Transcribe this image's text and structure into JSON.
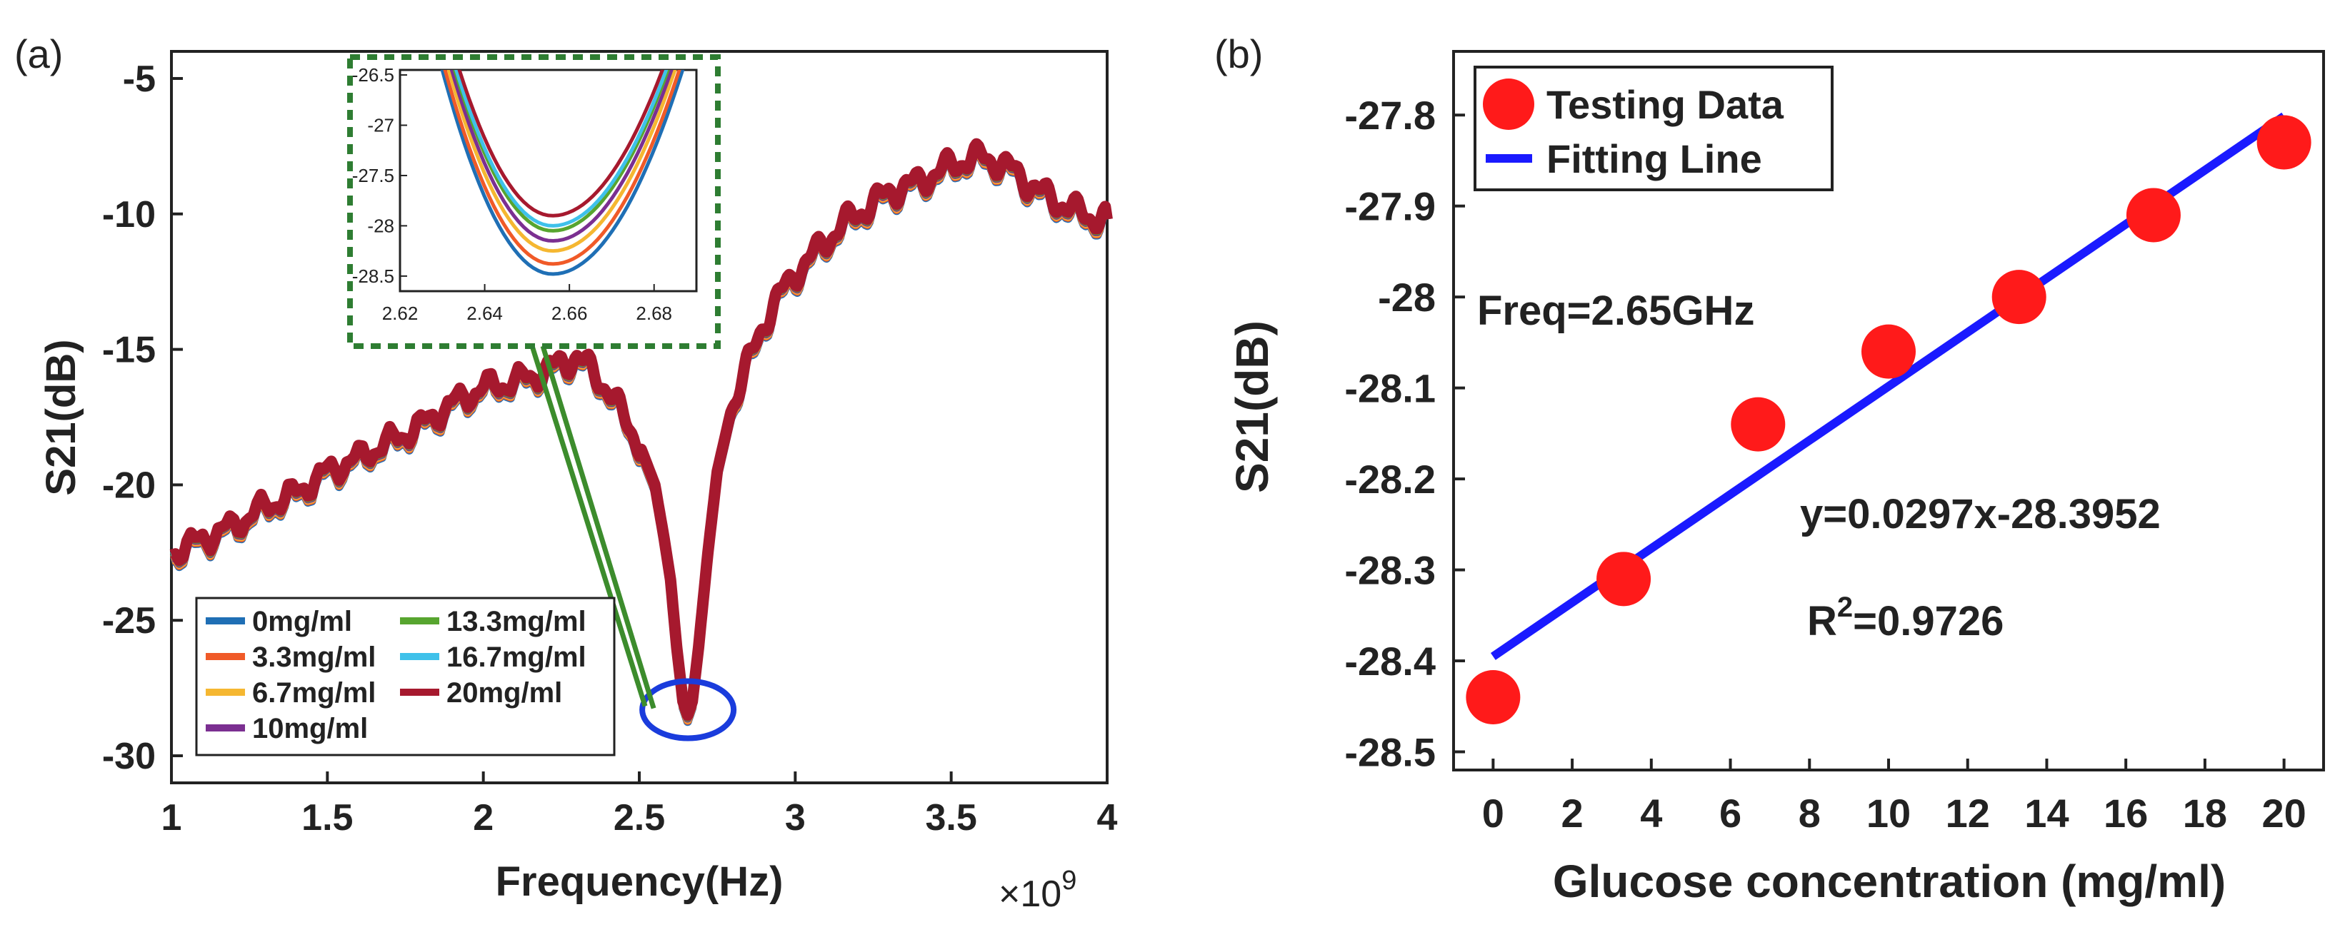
{
  "chart_data": [
    {
      "panel_label": "(a)",
      "type": "line",
      "title": "",
      "xlabel": "Frequency(Hz)",
      "ylabel": "S21(dB)",
      "x_multiplier_label": "×10",
      "x_multiplier_exp": "9",
      "xlim": [
        1,
        4
      ],
      "ylim": [
        -31,
        -4
      ],
      "xticks": [
        1,
        1.5,
        2,
        2.5,
        3,
        3.5,
        4
      ],
      "xtick_labels": [
        "1",
        "1.5",
        "2",
        "2.5",
        "3",
        "3.5",
        "4"
      ],
      "yticks": [
        -30,
        -25,
        -20,
        -15,
        -10,
        -5
      ],
      "ytick_labels": [
        "-30",
        "-25",
        "-20",
        "-15",
        "-10",
        "-5"
      ],
      "x": [
        1.0,
        1.1,
        1.2,
        1.3,
        1.4,
        1.5,
        1.6,
        1.7,
        1.8,
        1.9,
        2.0,
        2.1,
        2.2,
        2.25,
        2.3,
        2.35,
        2.4,
        2.45,
        2.5,
        2.55,
        2.58,
        2.6,
        2.62,
        2.64,
        2.655,
        2.67,
        2.69,
        2.72,
        2.75,
        2.8,
        2.85,
        2.9,
        2.95,
        3.0,
        3.05,
        3.1,
        3.15,
        3.2,
        3.25,
        3.3,
        3.35,
        3.4,
        3.45,
        3.5,
        3.55,
        3.6,
        3.65,
        3.7,
        3.75,
        3.8,
        3.85,
        3.9,
        3.95,
        4.0
      ],
      "y": [
        -22.5,
        -22.0,
        -21.5,
        -20.8,
        -20.3,
        -19.5,
        -19.0,
        -18.4,
        -17.8,
        -17.0,
        -16.4,
        -16.2,
        -15.8,
        -15.5,
        -15.3,
        -15.8,
        -16.5,
        -17.5,
        -18.5,
        -20.0,
        -22.0,
        -23.5,
        -26.0,
        -28.0,
        -28.5,
        -28.0,
        -26.0,
        -22.5,
        -19.5,
        -17.0,
        -15.5,
        -14.0,
        -13.0,
        -12.2,
        -11.6,
        -11.0,
        -10.4,
        -10.0,
        -9.6,
        -9.2,
        -9.0,
        -8.8,
        -8.5,
        -8.2,
        -8.0,
        -7.9,
        -8.1,
        -8.4,
        -8.9,
        -9.3,
        -9.6,
        -9.9,
        -10.1,
        -10.2
      ],
      "series": [
        {
          "name": "0mg/ml",
          "color": "#1f6fb5"
        },
        {
          "name": "3.3mg/ml",
          "color": "#f05a28"
        },
        {
          "name": "6.7mg/ml",
          "color": "#f5b731"
        },
        {
          "name": "10mg/ml",
          "color": "#7b2f91"
        },
        {
          "name": "13.3mg/ml",
          "color": "#57a52f"
        },
        {
          "name": "16.7mg/ml",
          "color": "#3fc1ea"
        },
        {
          "name": "20mg/ml",
          "color": "#a6192e"
        }
      ],
      "annotation": {
        "circle_color": "#1a3cdc",
        "zoom_box_color": "#2e7d32",
        "connector_color": "#3c8c2c"
      },
      "inset": {
        "xlim": [
          2.62,
          2.69
        ],
        "ylim": [
          -28.65,
          -26.45
        ],
        "xticks": [
          2.62,
          2.64,
          2.66,
          2.68
        ],
        "xtick_labels": [
          "2.62",
          "2.64",
          "2.66",
          "2.68"
        ],
        "yticks": [
          -28.5,
          -28,
          -27.5,
          -27,
          -26.5
        ],
        "ytick_labels": [
          "-28.5",
          "-28",
          "-27.5",
          "-27",
          "-26.5"
        ],
        "minima": [
          -28.48,
          -28.38,
          -28.25,
          -28.15,
          -28.05,
          -28.0,
          -27.9
        ],
        "min_x": 2.656
      }
    },
    {
      "panel_label": "(b)",
      "type": "scatter",
      "title": "",
      "xlabel": "Glucose concentration (mg/ml)",
      "ylabel": "S21(dB)",
      "xlim": [
        -1,
        21
      ],
      "ylim": [
        -28.52,
        -27.73
      ],
      "xticks": [
        0,
        2,
        4,
        6,
        8,
        10,
        12,
        14,
        16,
        18,
        20
      ],
      "xtick_labels": [
        "0",
        "2",
        "4",
        "6",
        "8",
        "10",
        "12",
        "14",
        "16",
        "18",
        "20"
      ],
      "yticks": [
        -28.5,
        -28.4,
        -28.3,
        -28.2,
        -28.1,
        -28.0,
        -27.9,
        -27.8
      ],
      "ytick_labels": [
        "-28.5",
        "-28.4",
        "-28.3",
        "-28.2",
        "-28.1",
        "-28",
        "-27.9",
        "-27.8"
      ],
      "x": [
        0,
        3.3,
        6.7,
        10,
        13.3,
        16.7,
        20
      ],
      "y": [
        -28.44,
        -28.31,
        -28.14,
        -28.06,
        -28.0,
        -27.91,
        -27.83
      ],
      "fit": {
        "slope": 0.0297,
        "intercept": -28.3952,
        "x_range": [
          0,
          20
        ]
      },
      "legend": [
        {
          "label": "Testing Data",
          "color": "#ff1a1a"
        },
        {
          "label": "Fitting Line",
          "color": "#1a1aff"
        }
      ],
      "annotations": {
        "freq": "Freq=2.65GHz",
        "equation": "y=0.0297x-28.3952",
        "equation_color": "#1a1aff",
        "r2_prefix": "R",
        "r2_sup": "2",
        "r2_suffix": "=0.9726",
        "r2_color": "#ff1a1a"
      }
    }
  ]
}
